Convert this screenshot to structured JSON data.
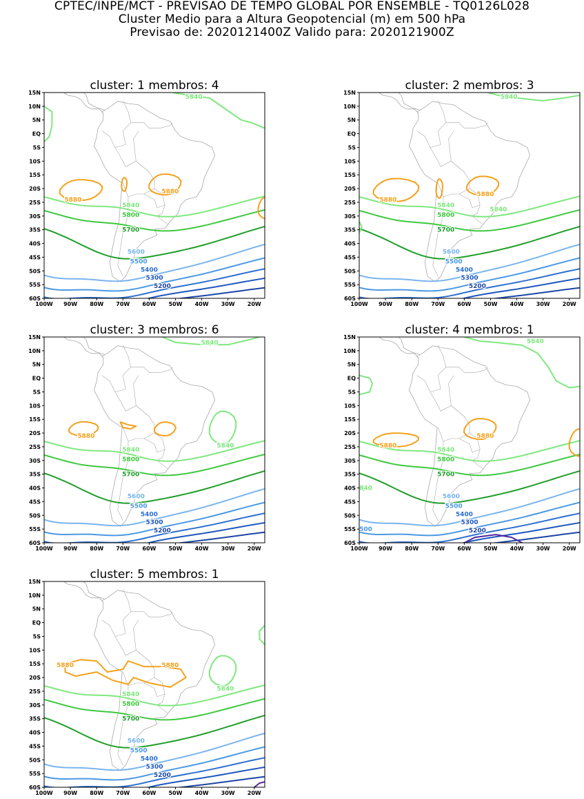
{
  "header": {
    "line1": "CPTEC/INPE/MCT - PREVISAO DE TEMPO GLOBAL POR ENSEMBLE - TQ0126L028",
    "line2": "Cluster Medio para a Altura Geopotencial (m) em 500 hPa",
    "line3": "Previsao de: 2020121400Z    Valido para: 2020121900Z"
  },
  "axes": {
    "lat_labels": [
      "15N",
      "10N",
      "5N",
      "EQ",
      "5S",
      "10S",
      "15S",
      "20S",
      "25S",
      "30S",
      "35S",
      "40S",
      "45S",
      "50S",
      "55S",
      "60S"
    ],
    "lon_labels": [
      "100W",
      "90W",
      "80W",
      "70W",
      "60W",
      "50W",
      "40W",
      "30W",
      "20W"
    ]
  },
  "colors": {
    "c5880": "#f5a01a",
    "c5840": "#7ee87e",
    "c5800": "#3cc83c",
    "c5700": "#1e9e28",
    "c5600": "#78b4ee",
    "c5500": "#4a98e4",
    "c5400": "#2a6ed0",
    "c5300": "#1c56be",
    "c5200": "#1b45a6",
    "c5100": "#5028a0",
    "coast": "#a8a8a8"
  },
  "clusters": [
    {
      "title": "cluster: 1   membros: 4"
    },
    {
      "title": "cluster: 2   membros: 3"
    },
    {
      "title": "cluster: 3   membros: 6"
    },
    {
      "title": "cluster: 4   membros: 1"
    },
    {
      "title": "cluster: 5   membros: 1"
    }
  ],
  "contour_labels": {
    "c5880": "5880",
    "c5840": "5840",
    "c5800": "5800",
    "c5700": "5700",
    "c5600": "5600",
    "c5500": "5500",
    "c5400": "5400",
    "c5300": "5300",
    "c5200": "5200",
    "c500_partial": "500",
    "c840_partial": "840"
  }
}
